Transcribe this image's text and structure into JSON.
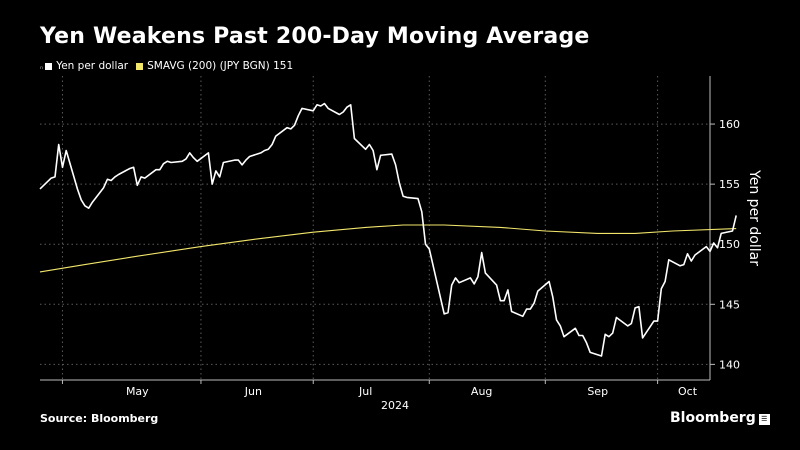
{
  "header": {
    "title": "Yen Weakens Past 200-Day Moving Average"
  },
  "legend": {
    "marker_glyph": "ₙ",
    "items": [
      {
        "label": "Yen per dollar",
        "color": "#ffffff"
      },
      {
        "label": "SMAVG (200) (JPY BGN) 151",
        "color": "#f2e66b"
      }
    ]
  },
  "footer": {
    "source": "Source: Bloomberg",
    "brand": "Bloomberg",
    "brand_mark": "☰"
  },
  "chart_data": {
    "type": "line",
    "title": "Yen Weakens Past 200-Day Moving Average",
    "ylabel": "Yen per dollar",
    "xlabel": "",
    "x_year_label": "2024",
    "ylim": [
      138.7,
      164
    ],
    "xlim": [
      "2024-04-19",
      "2024-10-15"
    ],
    "yticks": [
      140,
      145,
      150,
      155,
      160
    ],
    "xticks": [
      {
        "label": "May",
        "date": "2024-05-15"
      },
      {
        "label": "Jun",
        "date": "2024-06-15"
      },
      {
        "label": "Jul",
        "date": "2024-07-15"
      },
      {
        "label": "Aug",
        "date": "2024-08-15"
      },
      {
        "label": "Sep",
        "date": "2024-09-15"
      },
      {
        "label": "Oct",
        "date": "2024-10-09"
      }
    ],
    "gridlines": [
      "2024-04-25",
      "2024-06-01",
      "2024-07-01",
      "2024-08-01",
      "2024-09-01",
      "2024-10-01"
    ],
    "grid": true,
    "legend_position": "top-left",
    "series": [
      {
        "name": "Yen per dollar",
        "color": "#ffffff",
        "points": [
          [
            "2024-04-19",
            154.6
          ],
          [
            "2024-04-22",
            155.5
          ],
          [
            "2024-04-23",
            155.6
          ],
          [
            "2024-04-24",
            158.3
          ],
          [
            "2024-04-25",
            156.4
          ],
          [
            "2024-04-26",
            157.8
          ],
          [
            "2024-04-29",
            154.6
          ],
          [
            "2024-04-30",
            153.7
          ],
          [
            "2024-05-01",
            153.2
          ],
          [
            "2024-05-02",
            153.0
          ],
          [
            "2024-05-03",
            153.5
          ],
          [
            "2024-05-06",
            154.7
          ],
          [
            "2024-05-07",
            155.4
          ],
          [
            "2024-05-08",
            155.3
          ],
          [
            "2024-05-09",
            155.6
          ],
          [
            "2024-05-10",
            155.8
          ],
          [
            "2024-05-13",
            156.3
          ],
          [
            "2024-05-14",
            156.4
          ],
          [
            "2024-05-15",
            154.9
          ],
          [
            "2024-05-16",
            155.6
          ],
          [
            "2024-05-17",
            155.5
          ],
          [
            "2024-05-20",
            156.2
          ],
          [
            "2024-05-21",
            156.2
          ],
          [
            "2024-05-22",
            156.7
          ],
          [
            "2024-05-23",
            156.9
          ],
          [
            "2024-05-24",
            156.8
          ],
          [
            "2024-05-27",
            156.9
          ],
          [
            "2024-05-28",
            157.1
          ],
          [
            "2024-05-29",
            157.6
          ],
          [
            "2024-05-30",
            157.2
          ],
          [
            "2024-05-31",
            156.9
          ],
          [
            "2024-06-03",
            157.6
          ],
          [
            "2024-06-04",
            155.0
          ],
          [
            "2024-06-05",
            156.1
          ],
          [
            "2024-06-06",
            155.6
          ],
          [
            "2024-06-07",
            156.8
          ],
          [
            "2024-06-10",
            157.0
          ],
          [
            "2024-06-11",
            157.0
          ],
          [
            "2024-06-12",
            156.6
          ],
          [
            "2024-06-13",
            157.0
          ],
          [
            "2024-06-14",
            157.3
          ],
          [
            "2024-06-17",
            157.6
          ],
          [
            "2024-06-18",
            157.8
          ],
          [
            "2024-06-19",
            157.9
          ],
          [
            "2024-06-20",
            158.3
          ],
          [
            "2024-06-21",
            159.0
          ],
          [
            "2024-06-24",
            159.7
          ],
          [
            "2024-06-25",
            159.6
          ],
          [
            "2024-06-26",
            159.9
          ],
          [
            "2024-06-27",
            160.7
          ],
          [
            "2024-06-28",
            161.3
          ],
          [
            "2024-07-01",
            161.1
          ],
          [
            "2024-07-02",
            161.6
          ],
          [
            "2024-07-03",
            161.5
          ],
          [
            "2024-07-04",
            161.7
          ],
          [
            "2024-07-05",
            161.3
          ],
          [
            "2024-07-08",
            160.8
          ],
          [
            "2024-07-09",
            161.0
          ],
          [
            "2024-07-10",
            161.4
          ],
          [
            "2024-07-11",
            161.6
          ],
          [
            "2024-07-12",
            158.8
          ],
          [
            "2024-07-15",
            157.9
          ],
          [
            "2024-07-16",
            158.3
          ],
          [
            "2024-07-17",
            157.8
          ],
          [
            "2024-07-18",
            156.2
          ],
          [
            "2024-07-19",
            157.4
          ],
          [
            "2024-07-22",
            157.5
          ],
          [
            "2024-07-23",
            156.6
          ],
          [
            "2024-07-24",
            155.1
          ],
          [
            "2024-07-25",
            154.0
          ],
          [
            "2024-07-26",
            153.9
          ],
          [
            "2024-07-29",
            153.8
          ],
          [
            "2024-07-30",
            152.7
          ],
          [
            "2024-07-31",
            150.0
          ],
          [
            "2024-08-01",
            149.6
          ],
          [
            "2024-08-05",
            144.2
          ],
          [
            "2024-08-06",
            144.3
          ],
          [
            "2024-08-07",
            146.6
          ],
          [
            "2024-08-08",
            147.2
          ],
          [
            "2024-08-09",
            146.8
          ],
          [
            "2024-08-12",
            147.2
          ],
          [
            "2024-08-13",
            146.7
          ],
          [
            "2024-08-14",
            147.3
          ],
          [
            "2024-08-15",
            149.3
          ],
          [
            "2024-08-16",
            147.6
          ],
          [
            "2024-08-19",
            146.6
          ],
          [
            "2024-08-20",
            145.3
          ],
          [
            "2024-08-21",
            145.3
          ],
          [
            "2024-08-22",
            146.2
          ],
          [
            "2024-08-23",
            144.4
          ],
          [
            "2024-08-26",
            144.0
          ],
          [
            "2024-08-27",
            144.6
          ],
          [
            "2024-08-28",
            144.6
          ],
          [
            "2024-08-29",
            145.1
          ],
          [
            "2024-08-30",
            146.1
          ],
          [
            "2024-09-02",
            146.9
          ],
          [
            "2024-09-03",
            145.6
          ],
          [
            "2024-09-04",
            143.7
          ],
          [
            "2024-09-05",
            143.2
          ],
          [
            "2024-09-06",
            142.3
          ],
          [
            "2024-09-09",
            143.0
          ],
          [
            "2024-09-10",
            142.4
          ],
          [
            "2024-09-11",
            142.4
          ],
          [
            "2024-09-12",
            141.8
          ],
          [
            "2024-09-13",
            141.0
          ],
          [
            "2024-09-16",
            140.7
          ],
          [
            "2024-09-17",
            142.5
          ],
          [
            "2024-09-18",
            142.3
          ],
          [
            "2024-09-19",
            142.6
          ],
          [
            "2024-09-20",
            143.9
          ],
          [
            "2024-09-23",
            143.2
          ],
          [
            "2024-09-24",
            143.4
          ],
          [
            "2024-09-25",
            144.7
          ],
          [
            "2024-09-26",
            144.8
          ],
          [
            "2024-09-27",
            142.2
          ],
          [
            "2024-09-30",
            143.6
          ],
          [
            "2024-10-01",
            143.6
          ],
          [
            "2024-10-02",
            146.3
          ],
          [
            "2024-10-03",
            146.9
          ],
          [
            "2024-10-04",
            148.7
          ],
          [
            "2024-10-07",
            148.2
          ],
          [
            "2024-10-08",
            148.3
          ],
          [
            "2024-10-09",
            149.2
          ],
          [
            "2024-10-10",
            148.6
          ],
          [
            "2024-10-11",
            149.1
          ],
          [
            "2024-10-14",
            149.8
          ],
          [
            "2024-10-15",
            149.4
          ],
          [
            "2024-10-16",
            150.1
          ],
          [
            "2024-10-17",
            149.7
          ],
          [
            "2024-10-18",
            150.9
          ],
          [
            "2024-10-21",
            151.1
          ],
          [
            "2024-10-22",
            152.4
          ]
        ]
      },
      {
        "name": "SMAVG (200) (JPY BGN) 151",
        "color": "#f2e66b",
        "points": [
          [
            "2024-04-19",
            147.7
          ],
          [
            "2024-05-01",
            148.3
          ],
          [
            "2024-05-15",
            149.0
          ],
          [
            "2024-06-01",
            149.8
          ],
          [
            "2024-06-15",
            150.4
          ],
          [
            "2024-07-01",
            151.0
          ],
          [
            "2024-07-15",
            151.4
          ],
          [
            "2024-07-25",
            151.6
          ],
          [
            "2024-08-05",
            151.6
          ],
          [
            "2024-08-20",
            151.4
          ],
          [
            "2024-09-01",
            151.1
          ],
          [
            "2024-09-15",
            150.9
          ],
          [
            "2024-09-25",
            150.9
          ],
          [
            "2024-10-05",
            151.1
          ],
          [
            "2024-10-22",
            151.3
          ]
        ]
      }
    ]
  }
}
